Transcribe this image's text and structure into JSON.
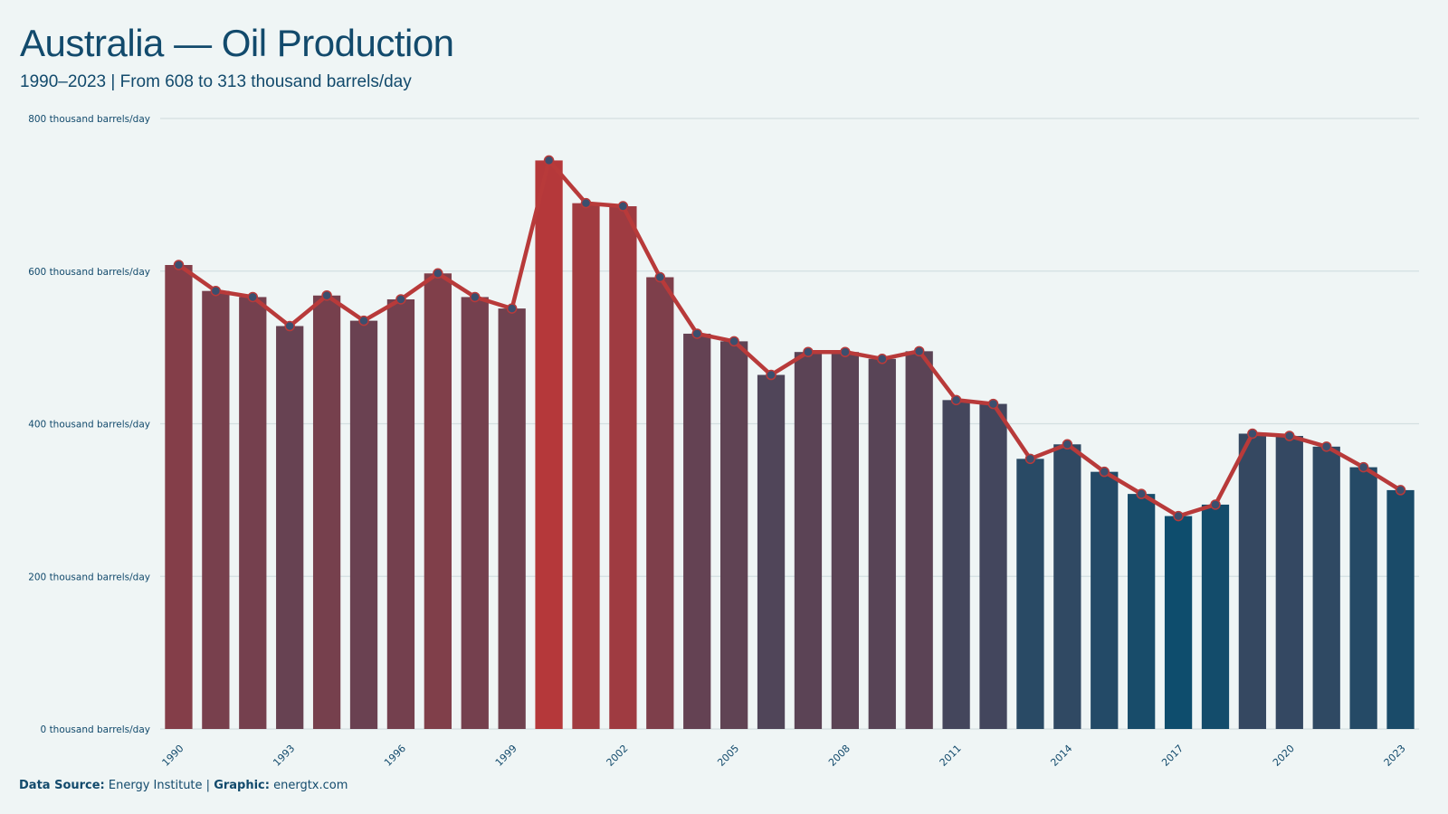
{
  "header": {
    "title": "Australia — Oil Production",
    "subtitle": "1990–2023 | From 608 to 313 thousand barrels/day"
  },
  "footer": {
    "source_label": "Data Source:",
    "source_value": " Energy Institute | ",
    "graphic_label": "Graphic:",
    "graphic_value": " energtx.com"
  },
  "colors": {
    "high": "#b5383a",
    "low": "#0e4d6d",
    "line": "#b83a3a",
    "marker_fill": "#3b4f6e",
    "grid": "#d3dfe1",
    "text": "#124a6c"
  },
  "chart_data": {
    "type": "bar",
    "title": "Australia — Oil Production",
    "subtitle": "1990–2023 | From 608 to 313 thousand barrels/day",
    "xlabel": "",
    "ylabel": "",
    "unit": "thousand barrels/day",
    "ylim": [
      0,
      800
    ],
    "yticks": [
      0,
      200,
      400,
      600,
      800
    ],
    "ytick_labels": [
      "0 thousand barrels/day",
      "200 thousand barrels/day",
      "400 thousand barrels/day",
      "600 thousand barrels/day",
      "800 thousand barrels/day"
    ],
    "xtick_labels": [
      "1990",
      "1993",
      "1996",
      "1999",
      "2002",
      "2005",
      "2008",
      "2011",
      "2014",
      "2017",
      "2020",
      "2023"
    ],
    "grid": true,
    "legend": "none",
    "overlay": "line with markers",
    "categories": [
      "1990",
      "1991",
      "1992",
      "1993",
      "1994",
      "1995",
      "1996",
      "1997",
      "1998",
      "1999",
      "2000",
      "2001",
      "2002",
      "2003",
      "2004",
      "2005",
      "2006",
      "2007",
      "2008",
      "2009",
      "2010",
      "2011",
      "2012",
      "2013",
      "2014",
      "2015",
      "2016",
      "2017",
      "2018",
      "2019",
      "2020",
      "2021",
      "2022",
      "2023"
    ],
    "values": [
      608,
      574,
      566,
      528,
      568,
      535,
      563,
      597,
      566,
      551,
      745,
      689,
      685,
      592,
      518,
      508,
      464,
      494,
      494,
      485,
      495,
      431,
      426,
      354,
      373,
      337,
      308,
      279,
      294,
      387,
      384,
      370,
      343,
      313
    ]
  }
}
